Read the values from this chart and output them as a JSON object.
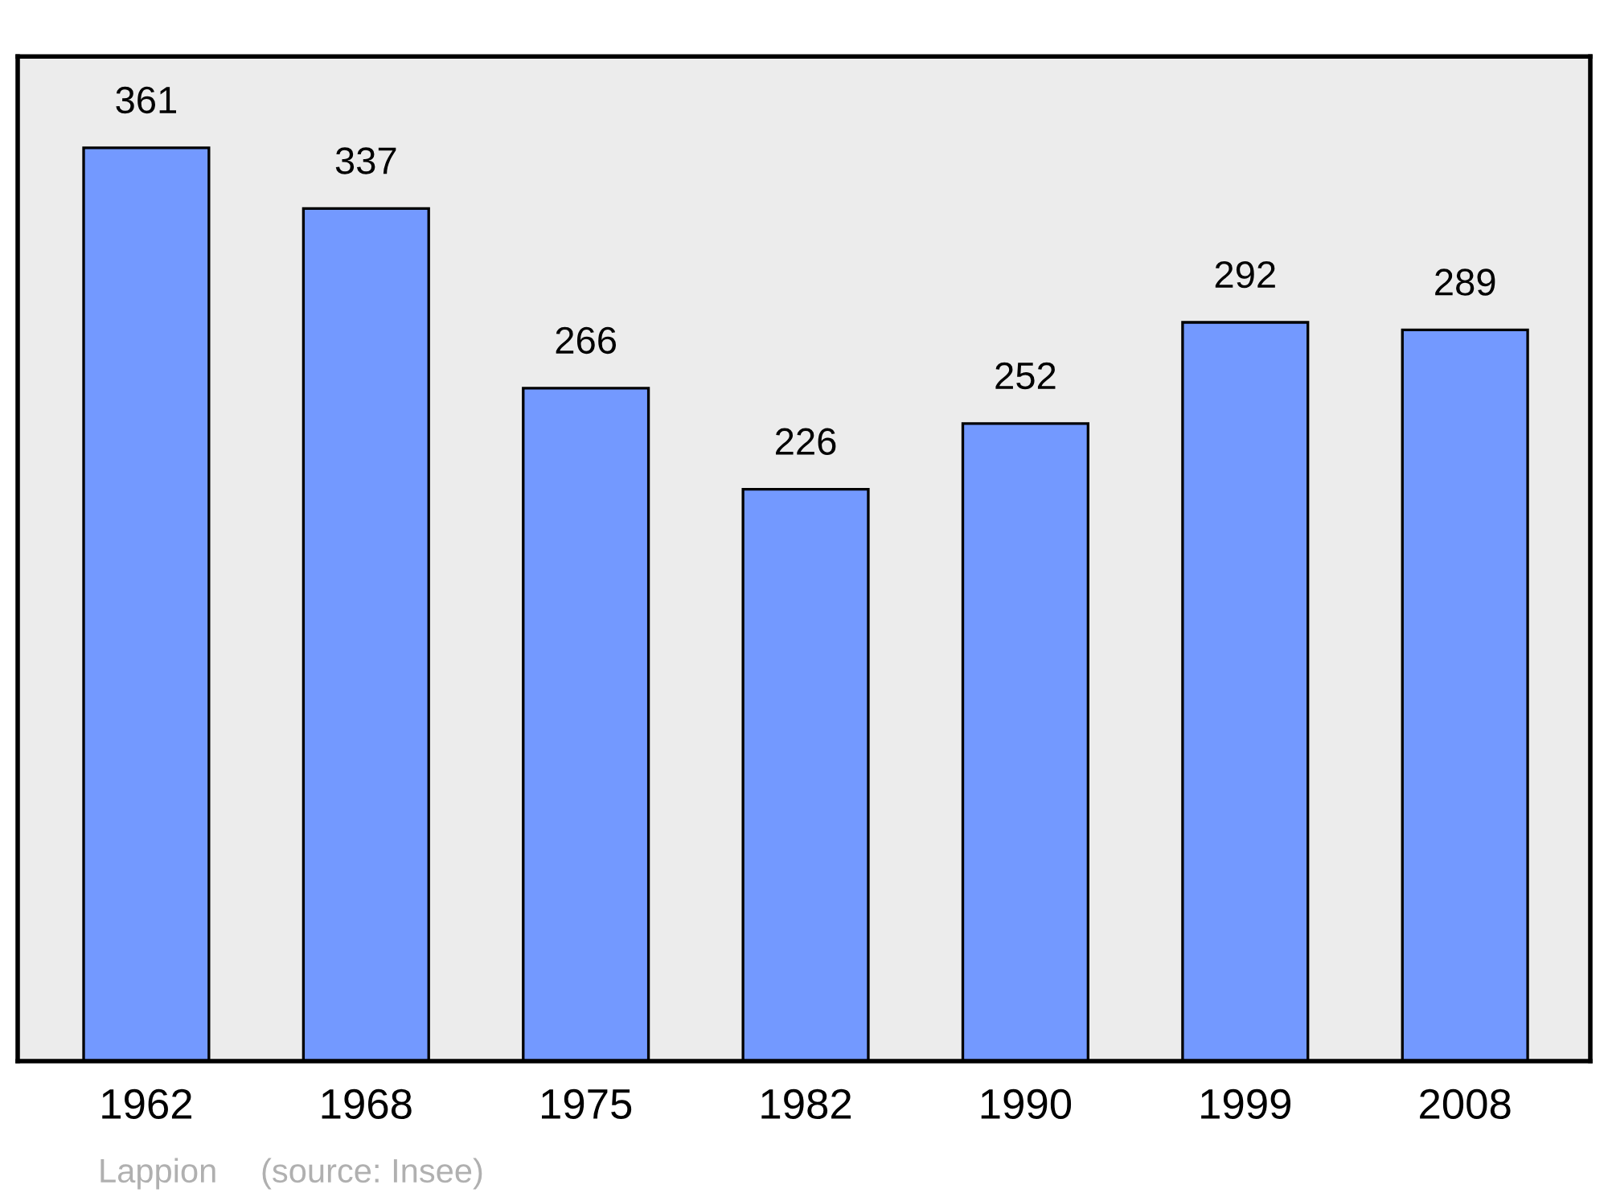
{
  "chart_data": {
    "type": "bar",
    "categories": [
      "1962",
      "1968",
      "1975",
      "1982",
      "1990",
      "1999",
      "2008"
    ],
    "values": [
      361,
      337,
      266,
      226,
      252,
      292,
      289
    ],
    "color": "#7399ff",
    "data_labels": true,
    "grid": false,
    "legend": false,
    "annotations": [
      "Lappion",
      "(source: Insee)"
    ]
  }
}
